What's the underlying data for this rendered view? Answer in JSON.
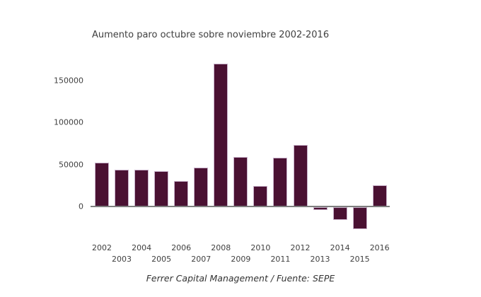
{
  "colors": {
    "bar_fill": "#4a1132",
    "bar_border": "#c7b0c9",
    "axis_line": "#7f7f7f",
    "text": "#404040"
  },
  "chart_data": {
    "type": "bar",
    "title": "Aumento paro octubre sobre noviembre 2002-2016",
    "source": "Ferrer Capital Management / Fuente: SEPE",
    "categories": [
      "2002",
      "2003",
      "2004",
      "2005",
      "2006",
      "2007",
      "2008",
      "2009",
      "2010",
      "2011",
      "2012",
      "2013",
      "2014",
      "2015",
      "2016"
    ],
    "values": [
      52000,
      44000,
      44000,
      42000,
      30000,
      46000,
      170000,
      59000,
      24000,
      58000,
      73000,
      -3000,
      -15000,
      -26000,
      25000
    ],
    "xlabel": "",
    "ylabel": "",
    "yticks": [
      0,
      50000,
      100000,
      150000
    ],
    "ytick_labels": [
      "0",
      "50000",
      "100000",
      "150000"
    ],
    "ylim": [
      -35000,
      180000
    ],
    "grid": false,
    "legend": false,
    "bar_color": "#4a1132"
  }
}
